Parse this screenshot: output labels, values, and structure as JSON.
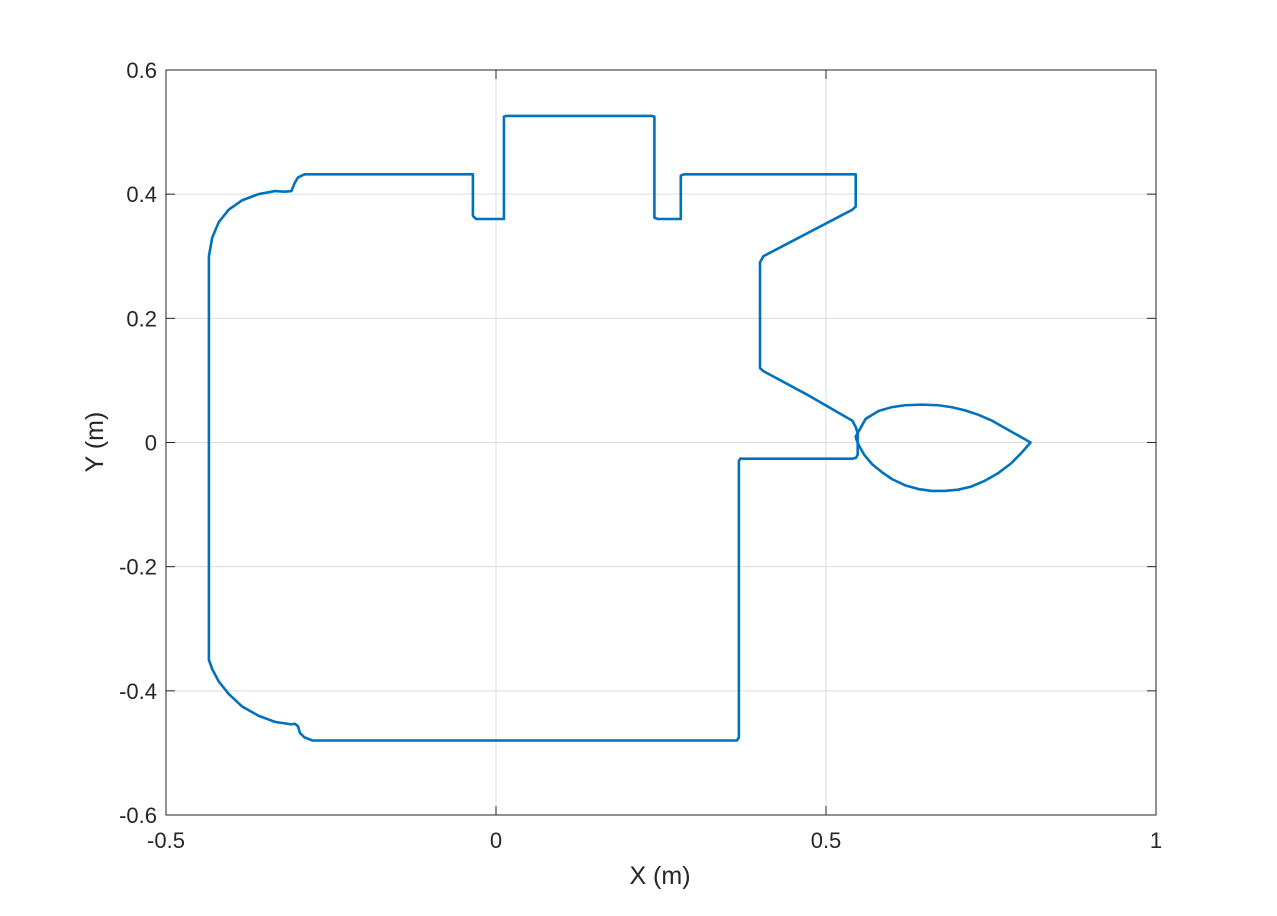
{
  "chart_data": {
    "type": "line",
    "title": "",
    "xlabel": "X (m)",
    "ylabel": "Y (m)",
    "xlim": [
      -0.5,
      1
    ],
    "ylim": [
      -0.6,
      0.6
    ],
    "x_ticks": [
      -0.5,
      0,
      0.5,
      1
    ],
    "y_ticks": [
      -0.6,
      -0.4,
      -0.2,
      0,
      0.2,
      0.4,
      0.6
    ],
    "x_tick_labels": [
      "-0.5",
      "0",
      "0.5",
      "1"
    ],
    "y_tick_labels": [
      "-0.6",
      "-0.4",
      "-0.2",
      "0",
      "0.2",
      "0.4",
      "0.6"
    ],
    "grid": true,
    "box": true,
    "line_color": "#0072BD",
    "series": [
      {
        "x": [
          -0.435,
          -0.435,
          -0.43,
          -0.42,
          -0.405,
          -0.385,
          -0.36,
          -0.335,
          -0.32,
          -0.31,
          -0.305,
          -0.3,
          -0.29,
          -0.275,
          -0.035,
          -0.035,
          -0.03,
          0.012,
          0.012,
          0.015,
          0.235,
          0.24,
          0.24,
          0.245,
          0.28,
          0.28,
          0.285,
          0.545,
          0.545,
          0.54,
          0.405,
          0.4,
          0.4,
          0.405,
          0.475,
          0.54,
          0.545,
          0.548
        ],
        "y": [
          -0.35,
          0.3,
          0.33,
          0.355,
          0.375,
          0.39,
          0.4,
          0.405,
          0.404,
          0.405,
          0.418,
          0.427,
          0.432,
          0.432,
          0.432,
          0.365,
          0.36,
          0.36,
          0.525,
          0.526,
          0.526,
          0.525,
          0.362,
          0.36,
          0.36,
          0.43,
          0.432,
          0.432,
          0.38,
          0.375,
          0.3,
          0.29,
          0.12,
          0.115,
          0.075,
          0.035,
          0.025,
          0.015
        ]
      },
      {
        "x": [
          0.548,
          0.56,
          0.58,
          0.6,
          0.62,
          0.645,
          0.67,
          0.69,
          0.71,
          0.73,
          0.75,
          0.77,
          0.79,
          0.81,
          0.795,
          0.78,
          0.76,
          0.74,
          0.72,
          0.7,
          0.68,
          0.66,
          0.64,
          0.62,
          0.6,
          0.585,
          0.57,
          0.558,
          0.55,
          0.546,
          0.545,
          0.548
        ],
        "y": [
          0.015,
          0.038,
          0.051,
          0.057,
          0.06,
          0.061,
          0.06,
          0.057,
          0.052,
          0.045,
          0.036,
          0.024,
          0.012,
          0.0,
          -0.018,
          -0.034,
          -0.05,
          -0.062,
          -0.071,
          -0.076,
          -0.078,
          -0.078,
          -0.075,
          -0.069,
          -0.059,
          -0.048,
          -0.035,
          -0.02,
          -0.005,
          0.005,
          0.01,
          0.015
        ]
      },
      {
        "x": [
          0.548,
          0.548,
          0.545,
          0.54,
          0.37,
          0.368,
          0.368,
          0.365,
          -0.278,
          -0.29,
          -0.297,
          -0.3,
          -0.305,
          -0.31,
          -0.335,
          -0.36,
          -0.385,
          -0.405,
          -0.42,
          -0.43,
          -0.435
        ],
        "y": [
          0.015,
          -0.02,
          -0.025,
          -0.026,
          -0.026,
          -0.03,
          -0.475,
          -0.48,
          -0.48,
          -0.475,
          -0.468,
          -0.457,
          -0.453,
          -0.454,
          -0.45,
          -0.44,
          -0.425,
          -0.405,
          -0.385,
          -0.365,
          -0.35
        ]
      }
    ]
  }
}
